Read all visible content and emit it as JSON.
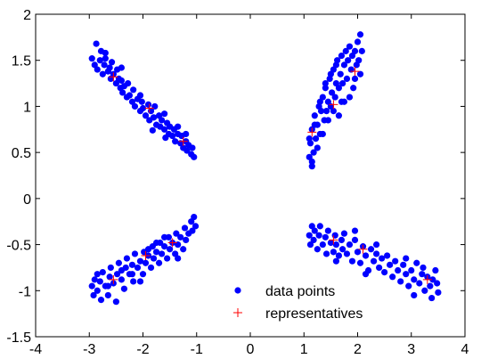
{
  "chart_data": {
    "type": "scatter",
    "title": "",
    "xlabel": "",
    "ylabel": "",
    "xlim": [
      -4,
      4
    ],
    "ylim": [
      -1.5,
      2
    ],
    "xticks": [
      -4,
      -3,
      -2,
      -1,
      0,
      1,
      2,
      3,
      4
    ],
    "yticks": [
      -1.5,
      -1,
      -0.5,
      0,
      0.5,
      1,
      1.5,
      2
    ],
    "xtick_labels": [
      "-4",
      "-3",
      "-2",
      "-1",
      "0",
      "1",
      "2",
      "3",
      "4"
    ],
    "ytick_labels": [
      "-1.5",
      "-1",
      "-0.5",
      "0",
      "0.5",
      "1",
      "1.5",
      "2"
    ],
    "grid": false,
    "legend": {
      "placement": "bottom-center",
      "entries": [
        {
          "label": "data points",
          "marker": "filled-circle",
          "color": "#0000ff"
        },
        {
          "label": "representatives",
          "marker": "plus",
          "color": "#ff0000"
        }
      ]
    },
    "series": [
      {
        "name": "data points",
        "color": "#0000ff",
        "marker": "filled-circle",
        "points": [
          [
            -2.95,
            1.52
          ],
          [
            -2.9,
            1.45
          ],
          [
            -2.87,
            1.68
          ],
          [
            -2.85,
            1.4
          ],
          [
            -2.8,
            1.5
          ],
          [
            -2.78,
            1.6
          ],
          [
            -2.75,
            1.35
          ],
          [
            -2.72,
            1.45
          ],
          [
            -2.7,
            1.52
          ],
          [
            -2.65,
            1.38
          ],
          [
            -2.62,
            1.42
          ],
          [
            -2.6,
            1.3
          ],
          [
            -2.58,
            1.48
          ],
          [
            -2.55,
            1.35
          ],
          [
            -2.5,
            1.25
          ],
          [
            -2.48,
            1.4
          ],
          [
            -2.45,
            1.3
          ],
          [
            -2.42,
            1.2
          ],
          [
            -2.4,
            1.28
          ],
          [
            -2.38,
            1.15
          ],
          [
            -2.35,
            1.22
          ],
          [
            -2.3,
            1.1
          ],
          [
            -2.28,
            1.25
          ],
          [
            -2.25,
            1.12
          ],
          [
            -2.2,
            1.05
          ],
          [
            -2.18,
            1.18
          ],
          [
            -2.15,
            1.0
          ],
          [
            -2.1,
            1.08
          ],
          [
            -2.05,
            0.95
          ],
          [
            -2.02,
            1.05
          ],
          [
            -2.0,
            0.98
          ],
          [
            -1.95,
            0.9
          ],
          [
            -1.9,
            1.02
          ],
          [
            -1.88,
            0.85
          ],
          [
            -1.85,
            0.95
          ],
          [
            -1.8,
            0.88
          ],
          [
            -1.78,
            1.0
          ],
          [
            -1.75,
            0.8
          ],
          [
            -1.7,
            0.9
          ],
          [
            -1.68,
            0.78
          ],
          [
            -1.65,
            0.85
          ],
          [
            -1.6,
            0.75
          ],
          [
            -1.55,
            0.82
          ],
          [
            -1.52,
            0.7
          ],
          [
            -1.5,
            0.78
          ],
          [
            -1.45,
            0.68
          ],
          [
            -1.42,
            0.75
          ],
          [
            -1.4,
            0.62
          ],
          [
            -1.35,
            0.7
          ],
          [
            -1.3,
            0.6
          ],
          [
            -1.28,
            0.68
          ],
          [
            -1.25,
            0.55
          ],
          [
            -1.2,
            0.62
          ],
          [
            -1.18,
            0.52
          ],
          [
            -1.15,
            0.58
          ],
          [
            -1.1,
            0.48
          ],
          [
            -1.08,
            0.55
          ],
          [
            -1.05,
            0.45
          ],
          [
            -1.2,
            0.7
          ],
          [
            -1.35,
            0.78
          ],
          [
            -1.6,
            0.92
          ],
          [
            -2.4,
            1.42
          ],
          [
            -2.7,
            1.58
          ],
          [
            -2.05,
            1.12
          ],
          [
            -1.82,
            0.74
          ],
          [
            -1.58,
            0.66
          ],
          [
            1.1,
            0.45
          ],
          [
            1.12,
            0.6
          ],
          [
            1.15,
            0.35
          ],
          [
            1.15,
            0.75
          ],
          [
            1.18,
            0.5
          ],
          [
            1.2,
            0.9
          ],
          [
            1.22,
            0.65
          ],
          [
            1.25,
            0.8
          ],
          [
            1.28,
            1.0
          ],
          [
            1.3,
            0.7
          ],
          [
            1.32,
            0.95
          ],
          [
            1.35,
            1.1
          ],
          [
            1.38,
            0.85
          ],
          [
            1.4,
            1.2
          ],
          [
            1.42,
            0.95
          ],
          [
            1.45,
            1.05
          ],
          [
            1.48,
            1.3
          ],
          [
            1.5,
            1.0
          ],
          [
            1.52,
            1.15
          ],
          [
            1.55,
            1.4
          ],
          [
            1.58,
            1.1
          ],
          [
            1.6,
            1.25
          ],
          [
            1.62,
            1.5
          ],
          [
            1.65,
            1.2
          ],
          [
            1.68,
            1.35
          ],
          [
            1.7,
            1.55
          ],
          [
            1.72,
            1.25
          ],
          [
            1.75,
            1.45
          ],
          [
            1.78,
            1.6
          ],
          [
            1.8,
            1.3
          ],
          [
            1.82,
            1.5
          ],
          [
            1.85,
            1.65
          ],
          [
            1.88,
            1.4
          ],
          [
            1.9,
            1.55
          ],
          [
            1.92,
            1.2
          ],
          [
            1.95,
            1.6
          ],
          [
            1.98,
            1.45
          ],
          [
            2.0,
            1.7
          ],
          [
            2.02,
            1.5
          ],
          [
            2.05,
            1.78
          ],
          [
            2.08,
            1.6
          ],
          [
            1.15,
            0.4
          ],
          [
            1.25,
            0.55
          ],
          [
            1.35,
            0.7
          ],
          [
            1.45,
            0.85
          ],
          [
            1.55,
            0.95
          ],
          [
            1.65,
            0.9
          ],
          [
            1.75,
            1.05
          ],
          [
            1.85,
            1.1
          ],
          [
            1.95,
            1.3
          ],
          [
            2.05,
            1.35
          ],
          [
            1.1,
            0.65
          ],
          [
            1.2,
            0.8
          ],
          [
            1.3,
            1.05
          ],
          [
            1.4,
            1.25
          ],
          [
            1.5,
            1.35
          ],
          [
            1.6,
            1.45
          ],
          [
            1.7,
            1.05
          ],
          [
            -2.95,
            -0.95
          ],
          [
            -2.92,
            -1.05
          ],
          [
            -2.9,
            -0.88
          ],
          [
            -2.85,
            -1.0
          ],
          [
            -2.8,
            -0.9
          ],
          [
            -2.78,
            -1.1
          ],
          [
            -2.75,
            -0.8
          ],
          [
            -2.7,
            -0.95
          ],
          [
            -2.65,
            -1.05
          ],
          [
            -2.62,
            -0.85
          ],
          [
            -2.6,
            -0.75
          ],
          [
            -2.55,
            -0.92
          ],
          [
            -2.5,
            -1.12
          ],
          [
            -2.48,
            -0.82
          ],
          [
            -2.45,
            -0.7
          ],
          [
            -2.4,
            -0.88
          ],
          [
            -2.35,
            -0.98
          ],
          [
            -2.32,
            -0.75
          ],
          [
            -2.3,
            -0.65
          ],
          [
            -2.25,
            -0.82
          ],
          [
            -2.2,
            -0.72
          ],
          [
            -2.18,
            -0.9
          ],
          [
            -2.15,
            -0.6
          ],
          [
            -2.1,
            -0.75
          ],
          [
            -2.05,
            -0.68
          ],
          [
            -2.0,
            -0.82
          ],
          [
            -1.98,
            -0.58
          ],
          [
            -1.95,
            -0.7
          ],
          [
            -1.9,
            -0.62
          ],
          [
            -1.85,
            -0.75
          ],
          [
            -1.82,
            -0.52
          ],
          [
            -1.8,
            -0.65
          ],
          [
            -1.75,
            -0.58
          ],
          [
            -1.7,
            -0.7
          ],
          [
            -1.68,
            -0.48
          ],
          [
            -1.65,
            -0.6
          ],
          [
            -1.6,
            -0.52
          ],
          [
            -1.55,
            -0.65
          ],
          [
            -1.52,
            -0.42
          ],
          [
            -1.5,
            -0.55
          ],
          [
            -1.45,
            -0.48
          ],
          [
            -1.4,
            -0.6
          ],
          [
            -1.38,
            -0.38
          ],
          [
            -1.35,
            -0.5
          ],
          [
            -1.3,
            -0.42
          ],
          [
            -1.25,
            -0.55
          ],
          [
            -1.22,
            -0.32
          ],
          [
            -1.2,
            -0.45
          ],
          [
            -1.15,
            -0.38
          ],
          [
            -1.1,
            -0.25
          ],
          [
            -1.08,
            -0.35
          ],
          [
            -1.05,
            -0.2
          ],
          [
            -1.02,
            -0.3
          ],
          [
            -2.65,
            -0.95
          ],
          [
            -2.4,
            -0.78
          ],
          [
            -2.2,
            -0.82
          ],
          [
            -1.9,
            -0.55
          ],
          [
            -1.6,
            -0.42
          ],
          [
            -1.35,
            -0.65
          ],
          [
            -2.05,
            -0.9
          ],
          [
            -2.85,
            -0.82
          ],
          [
            -1.75,
            -0.48
          ],
          [
            1.1,
            -0.4
          ],
          [
            1.12,
            -0.5
          ],
          [
            1.15,
            -0.3
          ],
          [
            1.18,
            -0.45
          ],
          [
            1.2,
            -0.35
          ],
          [
            1.25,
            -0.55
          ],
          [
            1.28,
            -0.4
          ],
          [
            1.3,
            -0.3
          ],
          [
            1.35,
            -0.5
          ],
          [
            1.4,
            -0.42
          ],
          [
            1.42,
            -0.6
          ],
          [
            1.45,
            -0.35
          ],
          [
            1.5,
            -0.48
          ],
          [
            1.55,
            -0.58
          ],
          [
            1.58,
            -0.4
          ],
          [
            1.6,
            -0.5
          ],
          [
            1.65,
            -0.62
          ],
          [
            1.7,
            -0.45
          ],
          [
            1.72,
            -0.55
          ],
          [
            1.75,
            -0.38
          ],
          [
            1.8,
            -0.6
          ],
          [
            1.85,
            -0.5
          ],
          [
            1.9,
            -0.68
          ],
          [
            1.95,
            -0.45
          ],
          [
            2.0,
            -0.58
          ],
          [
            2.05,
            -0.7
          ],
          [
            2.1,
            -0.52
          ],
          [
            2.15,
            -0.62
          ],
          [
            2.2,
            -0.78
          ],
          [
            2.25,
            -0.55
          ],
          [
            2.3,
            -0.68
          ],
          [
            2.35,
            -0.6
          ],
          [
            2.4,
            -0.75
          ],
          [
            2.45,
            -0.65
          ],
          [
            2.5,
            -0.8
          ],
          [
            2.55,
            -0.62
          ],
          [
            2.6,
            -0.72
          ],
          [
            2.65,
            -0.85
          ],
          [
            2.7,
            -0.68
          ],
          [
            2.75,
            -0.78
          ],
          [
            2.8,
            -0.9
          ],
          [
            2.85,
            -0.72
          ],
          [
            2.9,
            -0.82
          ],
          [
            2.95,
            -0.95
          ],
          [
            3.0,
            -0.78
          ],
          [
            3.05,
            -0.88
          ],
          [
            3.1,
            -0.7
          ],
          [
            3.15,
            -0.92
          ],
          [
            3.2,
            -0.82
          ],
          [
            3.25,
            -1.0
          ],
          [
            3.3,
            -0.85
          ],
          [
            3.35,
            -0.95
          ],
          [
            3.4,
            -0.88
          ],
          [
            3.45,
            -0.78
          ],
          [
            3.48,
            -0.92
          ],
          [
            3.5,
            -1.02
          ],
          [
            3.38,
            -1.08
          ],
          [
            3.22,
            -0.75
          ],
          [
            1.95,
            -0.35
          ],
          [
            2.35,
            -0.5
          ],
          [
            2.9,
            -0.65
          ],
          [
            1.6,
            -0.68
          ],
          [
            2.15,
            -0.82
          ],
          [
            3.05,
            -1.05
          ]
        ]
      },
      {
        "name": "representatives",
        "color": "#ff0000",
        "marker": "plus",
        "points": [
          [
            -2.55,
            1.32
          ],
          [
            -1.88,
            0.98
          ],
          [
            -1.25,
            0.62
          ],
          [
            1.15,
            0.72
          ],
          [
            1.55,
            1.02
          ],
          [
            1.95,
            1.38
          ],
          [
            -2.55,
            -0.88
          ],
          [
            -1.95,
            -0.62
          ],
          [
            -1.45,
            -0.48
          ],
          [
            1.55,
            -0.45
          ],
          [
            2.1,
            -0.55
          ],
          [
            3.3,
            -0.88
          ]
        ]
      }
    ]
  }
}
